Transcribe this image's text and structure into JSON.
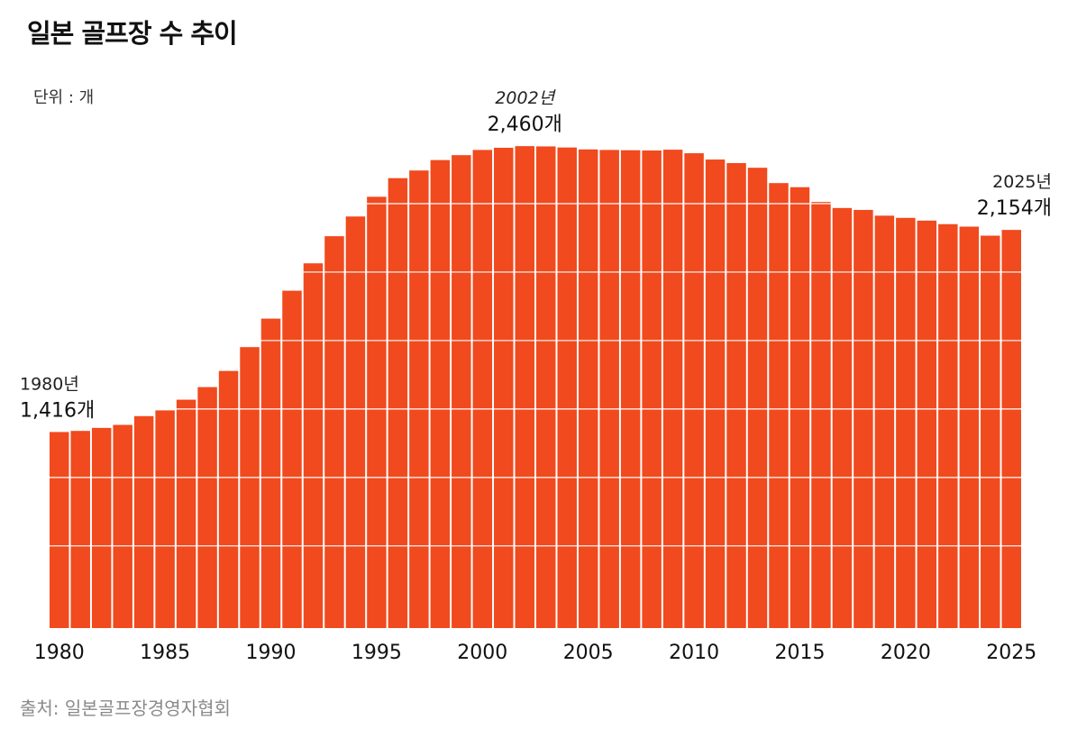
{
  "title": "일본 골프장 수 추이",
  "unit_label": "단위 : 개",
  "source": "출처: 일본골프장경영자협회",
  "colors": {
    "bar": "#f04a1e",
    "gridline": "#ffffff"
  },
  "chart_data": {
    "type": "bar",
    "title": "일본 골프장 수 추이",
    "xlabel": "",
    "ylabel": "",
    "unit": "개",
    "ylim": [
      700,
      2500
    ],
    "x_ticks": [
      "1980",
      "1985",
      "1990",
      "1995",
      "2000",
      "2005",
      "2010",
      "2015",
      "2020",
      "2025"
    ],
    "categories": [
      1980,
      1981,
      1982,
      1983,
      1984,
      1985,
      1986,
      1987,
      1988,
      1989,
      1990,
      1991,
      1992,
      1993,
      1994,
      1995,
      1996,
      1997,
      1998,
      1999,
      2000,
      2001,
      2002,
      2003,
      2004,
      2005,
      2006,
      2007,
      2008,
      2009,
      2010,
      2011,
      2012,
      2013,
      2014,
      2015,
      2016,
      2017,
      2018,
      2019,
      2020,
      2021,
      2022,
      2023,
      2024,
      2025
    ],
    "values": [
      1416,
      1420,
      1431,
      1442,
      1474,
      1495,
      1534,
      1580,
      1639,
      1726,
      1830,
      1932,
      2032,
      2131,
      2203,
      2275,
      2343,
      2371,
      2409,
      2427,
      2446,
      2454,
      2460,
      2459,
      2455,
      2448,
      2446,
      2445,
      2444,
      2447,
      2434,
      2411,
      2398,
      2381,
      2325,
      2310,
      2256,
      2234,
      2227,
      2206,
      2198,
      2188,
      2175,
      2166,
      2133,
      2154
    ],
    "grid": "horizontal white lines",
    "legend": "none",
    "annotations": [
      {
        "year_label": "1980년",
        "value_label": "1,416개",
        "index": 0,
        "italic": false
      },
      {
        "year_label": "2002년",
        "value_label": "2,460개",
        "index": 22,
        "italic": true
      },
      {
        "year_label": "2025년",
        "value_label": "2,154개",
        "index": 45,
        "italic": false
      }
    ]
  }
}
